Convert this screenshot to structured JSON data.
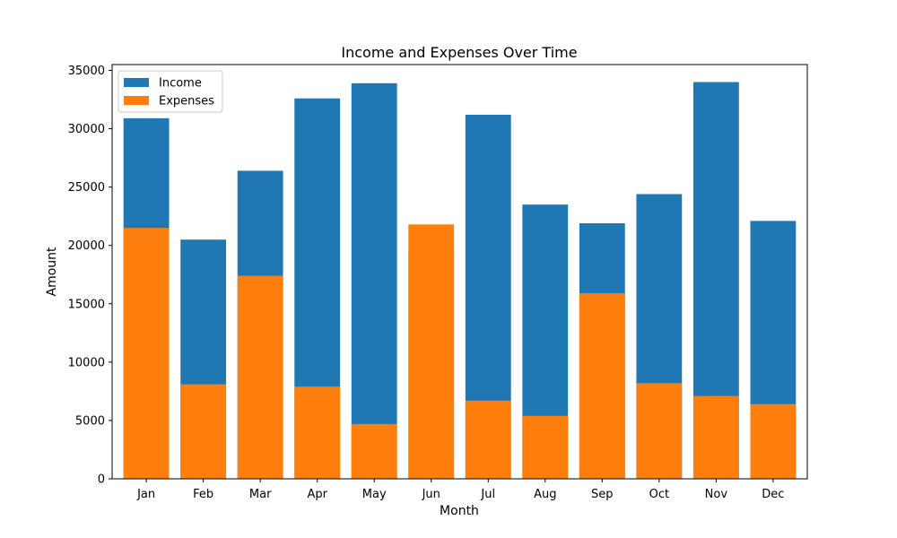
{
  "chart_data": {
    "type": "bar",
    "title": "Income and Expenses Over Time",
    "xlabel": "Month",
    "ylabel": "Amount",
    "categories": [
      "Jan",
      "Feb",
      "Mar",
      "Apr",
      "May",
      "Jun",
      "Jul",
      "Aug",
      "Sep",
      "Oct",
      "Nov",
      "Dec"
    ],
    "series": [
      {
        "name": "Income",
        "color": "#1f77b4",
        "values": [
          30900,
          20500,
          26400,
          32600,
          33900,
          19500,
          31200,
          23500,
          21900,
          24400,
          34000,
          22100
        ]
      },
      {
        "name": "Expenses",
        "color": "#ff7f0e",
        "values": [
          21500,
          8100,
          17400,
          7900,
          4700,
          21800,
          6700,
          5400,
          15900,
          8200,
          7100,
          6400
        ]
      }
    ],
    "ylim": [
      0,
      35500
    ],
    "yticks": [
      0,
      5000,
      10000,
      15000,
      20000,
      25000,
      30000,
      35000
    ],
    "ytick_labels": [
      "0",
      "5000",
      "10000",
      "15000",
      "20000",
      "25000",
      "30000",
      "35000"
    ],
    "grid": false,
    "legend_position": "upper left"
  }
}
